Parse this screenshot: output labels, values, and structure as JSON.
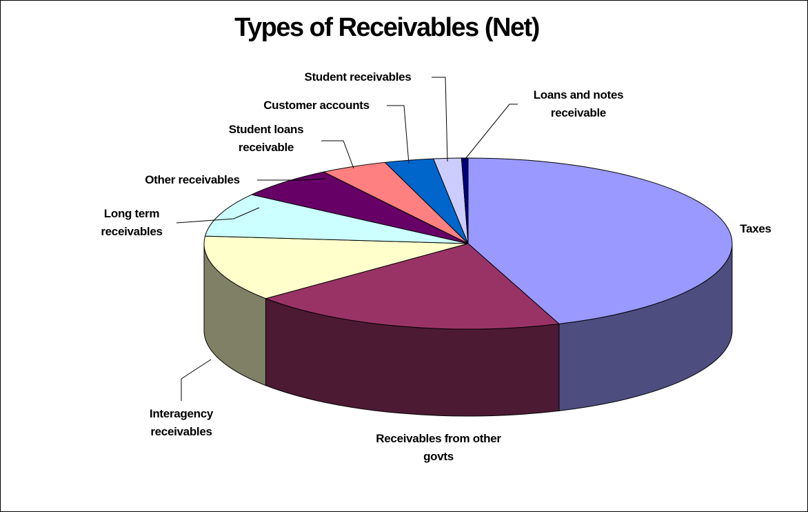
{
  "chart_data": {
    "type": "pie3d",
    "title": "Types of Receivables (Net)",
    "categories": [
      "Taxes",
      "Receivables from other govts",
      "Interagency receivables",
      "Long term receivables",
      "Other receivables",
      "Student loans receivable",
      "Customer accounts",
      "Student receivables",
      "Loans and notes receivable"
    ],
    "values": [
      44.4,
      19.5,
      12.5,
      8.3,
      6.1,
      4.1,
      3.0,
      1.7,
      0.4
    ],
    "colors": [
      "#9999ff",
      "#993366",
      "#ffffcc",
      "#ccffff",
      "#660066",
      "#ff8080",
      "#0066cc",
      "#ccccff",
      "#000080"
    ]
  }
}
